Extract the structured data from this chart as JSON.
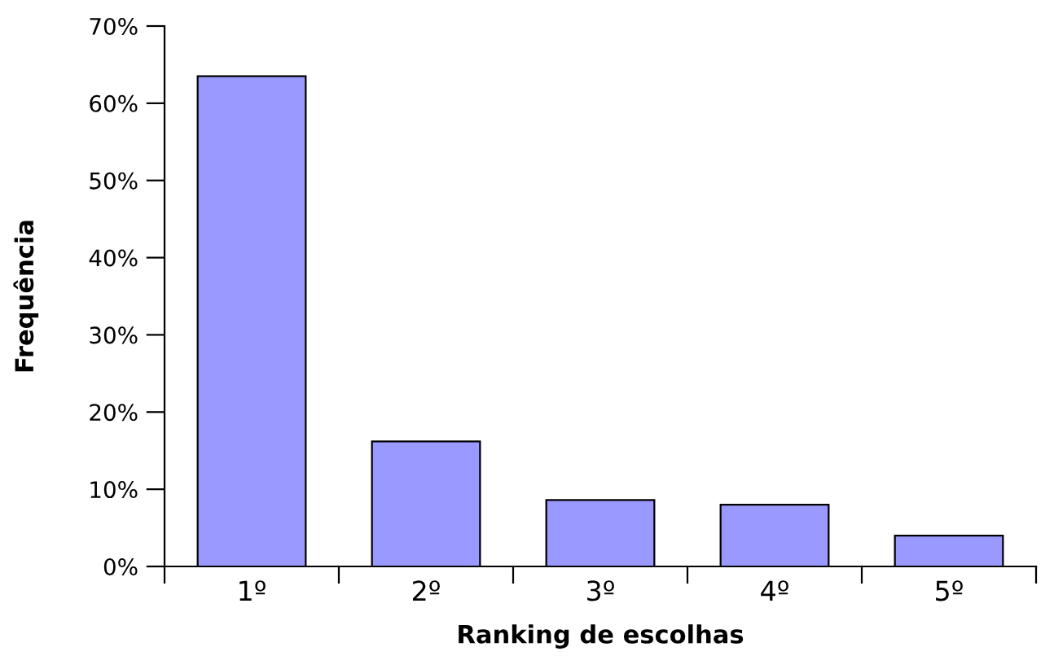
{
  "chart_data": {
    "type": "bar",
    "xlabel": "Ranking de escolhas",
    "ylabel": "Frequência",
    "categories": [
      "1º",
      "2º",
      "3º",
      "4º",
      "5º"
    ],
    "values": [
      63.5,
      16.2,
      8.6,
      8.0,
      4.0
    ],
    "color": "#9999ff",
    "ylim": [
      0,
      70
    ],
    "yticks": [
      {
        "value": 0,
        "label": "0%"
      },
      {
        "value": 10,
        "label": "10%"
      },
      {
        "value": 20,
        "label": "20%"
      },
      {
        "value": 30,
        "label": "30%"
      },
      {
        "value": 40,
        "label": "40%"
      },
      {
        "value": 50,
        "label": "50%"
      },
      {
        "value": 60,
        "label": "60%"
      },
      {
        "value": 70,
        "label": "70%"
      }
    ],
    "grid": false,
    "legend": false
  }
}
